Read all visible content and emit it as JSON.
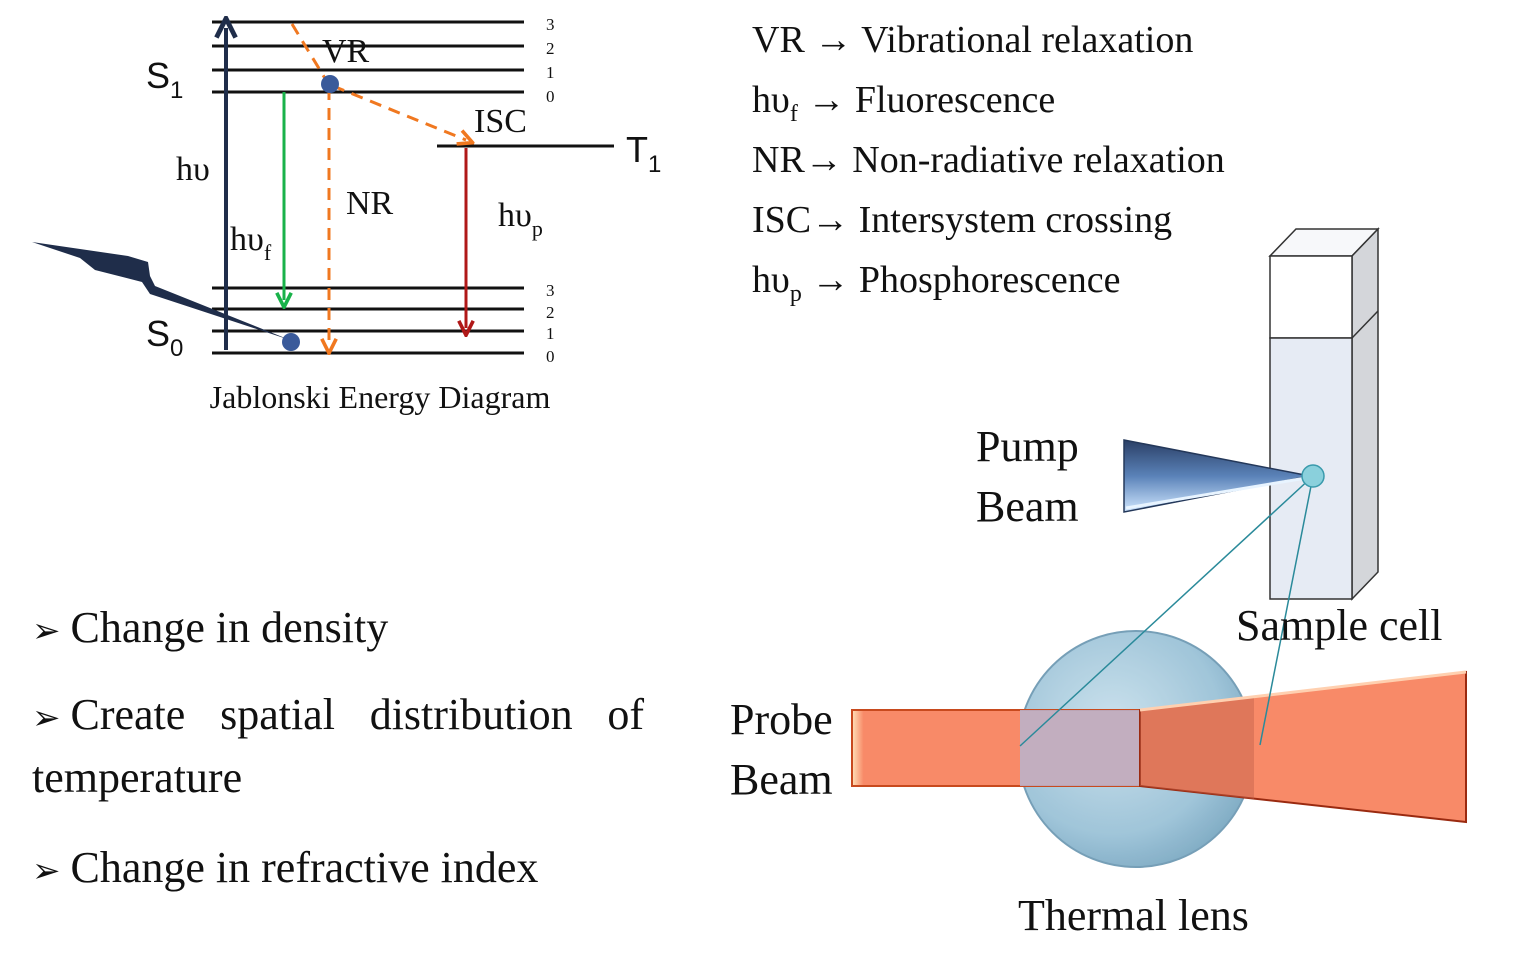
{
  "jablonski": {
    "caption": "Jablonski Energy Diagram",
    "s1": "S",
    "s1_sub": "1",
    "s0": "S",
    "s0_sub": "0",
    "t1": "T",
    "t1_sub": "1",
    "hv": "hυ",
    "hv_f": "hυ",
    "hv_f_sub": "f",
    "hv_p": "hυ",
    "hv_p_sub": "p",
    "vr": "VR",
    "nr": "NR",
    "isc": "ISC",
    "s1_levels": [
      "3",
      "2",
      "1",
      "0"
    ],
    "s0_levels": [
      "3",
      "2",
      "1",
      "0"
    ],
    "colors": {
      "absorption": "#1f2d4a",
      "fluorescence": "#19b24a",
      "nonradiative": "#f07820",
      "phosphorescence": "#b01818",
      "electron": "#3a5a9a"
    }
  },
  "legend": [
    {
      "abbr": "VR",
      "sub": "",
      "arrow": " → ",
      "text": "Vibrational relaxation"
    },
    {
      "abbr": "hυ",
      "sub": "f",
      "arrow": " → ",
      "text": "Fluorescence"
    },
    {
      "abbr": "NR",
      "sub": "",
      "arrow": "→ ",
      "text": "Non-radiative relaxation"
    },
    {
      "abbr": "ISC",
      "sub": "",
      "arrow": "→ ",
      "text": "Intersystem crossing"
    },
    {
      "abbr": "hυ",
      "sub": "p",
      "arrow": " → ",
      "text": "Phosphorescence"
    }
  ],
  "bullets": [
    "Change in density",
    "Create spatial distribution of temperature",
    "Change in refractive index"
  ],
  "setup": {
    "pump_line1": "Pump",
    "pump_line2": "Beam",
    "probe_line1": "Probe",
    "probe_line2": "Beam",
    "sample_cell": "Sample cell",
    "thermal_lens": "Thermal lens",
    "colors": {
      "pump": "#4a6fa5",
      "probe": "#f88a68",
      "lens": "#9cc3d8",
      "cell": "#e6ebf4"
    }
  }
}
